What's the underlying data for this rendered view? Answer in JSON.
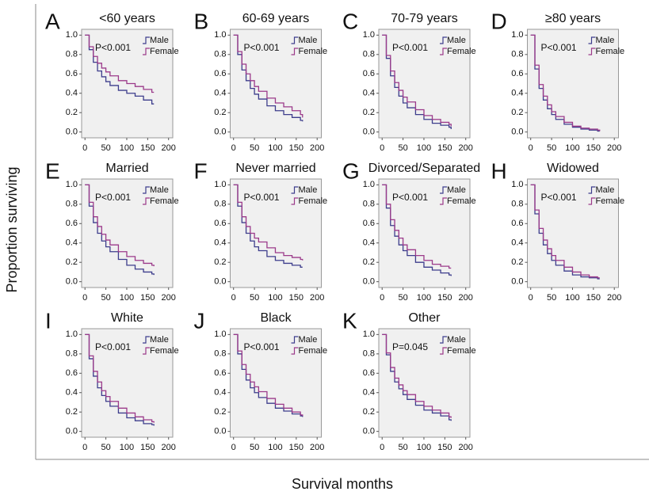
{
  "y_label": "Proportion surviving",
  "x_label": "Survival months",
  "chart_data": [
    {
      "type": "line",
      "step": true,
      "panel": "A",
      "title": "<60 years",
      "annotation": "P<0.001",
      "x": [
        0,
        10,
        20,
        30,
        40,
        50,
        60,
        80,
        100,
        120,
        140,
        160,
        165
      ],
      "series": [
        {
          "name": "Male",
          "color": "#3d3d8c",
          "values": [
            1,
            0.85,
            0.72,
            0.63,
            0.57,
            0.52,
            0.48,
            0.43,
            0.4,
            0.37,
            0.33,
            0.29,
            0.29
          ]
        },
        {
          "name": "Female",
          "color": "#9b3a8a",
          "values": [
            1,
            0.88,
            0.78,
            0.71,
            0.66,
            0.62,
            0.58,
            0.53,
            0.5,
            0.47,
            0.44,
            0.41,
            0.41
          ]
        }
      ],
      "xlim": [
        -8,
        210
      ],
      "ylim": [
        -0.06,
        1.06
      ],
      "xticks": [
        0,
        50,
        100,
        150,
        200
      ],
      "yticks": [
        {
          "value": 0,
          "label": "0.0"
        },
        0.2,
        0.4,
        0.6,
        0.8,
        {
          "value": 1,
          "label": "1.0"
        }
      ]
    },
    {
      "type": "line",
      "step": true,
      "panel": "B",
      "title": "60-69 years",
      "annotation": "P<0.001",
      "x": [
        0,
        10,
        20,
        30,
        40,
        50,
        60,
        80,
        100,
        120,
        140,
        160,
        165
      ],
      "series": [
        {
          "name": "Male",
          "color": "#3d3d8c",
          "values": [
            1,
            0.8,
            0.64,
            0.53,
            0.45,
            0.39,
            0.34,
            0.27,
            0.22,
            0.18,
            0.15,
            0.12,
            0.11
          ]
        },
        {
          "name": "Female",
          "color": "#9b3a8a",
          "values": [
            1,
            0.83,
            0.7,
            0.6,
            0.53,
            0.47,
            0.42,
            0.35,
            0.3,
            0.26,
            0.22,
            0.18,
            0.15
          ]
        }
      ],
      "xlim": [
        -8,
        210
      ],
      "ylim": [
        -0.06,
        1.06
      ],
      "xticks": [
        0,
        50,
        100,
        150,
        200
      ],
      "yticks": [
        {
          "value": 0,
          "label": "0.0"
        },
        0.2,
        0.4,
        0.6,
        0.8,
        {
          "value": 1,
          "label": "1.0"
        }
      ]
    },
    {
      "type": "line",
      "step": true,
      "panel": "C",
      "title": "70-79 years",
      "annotation": "P<0.001",
      "x": [
        0,
        10,
        20,
        30,
        40,
        50,
        60,
        80,
        100,
        120,
        140,
        160,
        165
      ],
      "series": [
        {
          "name": "Male",
          "color": "#3d3d8c",
          "values": [
            1,
            0.76,
            0.58,
            0.46,
            0.37,
            0.3,
            0.25,
            0.18,
            0.13,
            0.09,
            0.07,
            0.05,
            0.03
          ]
        },
        {
          "name": "Female",
          "color": "#9b3a8a",
          "values": [
            1,
            0.79,
            0.63,
            0.51,
            0.43,
            0.36,
            0.31,
            0.23,
            0.17,
            0.13,
            0.1,
            0.08,
            0.06
          ]
        }
      ],
      "xlim": [
        -8,
        210
      ],
      "ylim": [
        -0.06,
        1.06
      ],
      "xticks": [
        0,
        50,
        100,
        150,
        200
      ],
      "yticks": [
        {
          "value": 0,
          "label": "0.0"
        },
        0.2,
        0.4,
        0.6,
        0.8,
        {
          "value": 1,
          "label": "1.0"
        }
      ]
    },
    {
      "type": "line",
      "step": true,
      "panel": "D",
      "title": "≥80 years",
      "annotation": "P<0.001",
      "x": [
        0,
        10,
        20,
        30,
        40,
        50,
        60,
        80,
        100,
        120,
        140,
        160,
        165
      ],
      "series": [
        {
          "name": "Male",
          "color": "#3d3d8c",
          "values": [
            1,
            0.65,
            0.45,
            0.33,
            0.24,
            0.18,
            0.13,
            0.08,
            0.05,
            0.03,
            0.02,
            0.01,
            0.01
          ]
        },
        {
          "name": "Female",
          "color": "#9b3a8a",
          "values": [
            1,
            0.69,
            0.49,
            0.37,
            0.28,
            0.21,
            0.16,
            0.1,
            0.06,
            0.04,
            0.03,
            0.02,
            0.01
          ]
        }
      ],
      "xlim": [
        -8,
        210
      ],
      "ylim": [
        -0.06,
        1.06
      ],
      "xticks": [
        0,
        50,
        100,
        150,
        200
      ],
      "yticks": [
        {
          "value": 0,
          "label": "0.0"
        },
        0.2,
        0.4,
        0.6,
        0.8,
        {
          "value": 1,
          "label": "1.0"
        }
      ]
    },
    {
      "type": "line",
      "step": true,
      "panel": "E",
      "title": "Married",
      "annotation": "P<0.001",
      "x": [
        0,
        10,
        20,
        30,
        40,
        50,
        60,
        80,
        100,
        120,
        140,
        160,
        165
      ],
      "series": [
        {
          "name": "Male",
          "color": "#3d3d8c",
          "values": [
            1,
            0.78,
            0.61,
            0.5,
            0.42,
            0.36,
            0.31,
            0.23,
            0.17,
            0.13,
            0.1,
            0.08,
            0.07
          ]
        },
        {
          "name": "Female",
          "color": "#9b3a8a",
          "values": [
            1,
            0.82,
            0.67,
            0.57,
            0.49,
            0.43,
            0.38,
            0.31,
            0.26,
            0.22,
            0.19,
            0.17,
            0.16
          ]
        }
      ],
      "xlim": [
        -8,
        210
      ],
      "ylim": [
        -0.06,
        1.06
      ],
      "xticks": [
        0,
        50,
        100,
        150,
        200
      ],
      "yticks": [
        {
          "value": 0,
          "label": "0.0"
        },
        0.2,
        0.4,
        0.6,
        0.8,
        {
          "value": 1,
          "label": "1.0"
        }
      ]
    },
    {
      "type": "line",
      "step": true,
      "panel": "F",
      "title": "Never married",
      "annotation": "P<0.001",
      "x": [
        0,
        10,
        20,
        30,
        40,
        50,
        60,
        80,
        100,
        120,
        140,
        160,
        165
      ],
      "series": [
        {
          "name": "Male",
          "color": "#3d3d8c",
          "values": [
            1,
            0.78,
            0.61,
            0.5,
            0.42,
            0.36,
            0.32,
            0.26,
            0.22,
            0.19,
            0.17,
            0.15,
            0.15
          ]
        },
        {
          "name": "Female",
          "color": "#9b3a8a",
          "values": [
            1,
            0.82,
            0.67,
            0.57,
            0.5,
            0.45,
            0.41,
            0.35,
            0.3,
            0.27,
            0.25,
            0.23,
            0.22
          ]
        }
      ],
      "xlim": [
        -8,
        210
      ],
      "ylim": [
        -0.06,
        1.06
      ],
      "xticks": [
        0,
        50,
        100,
        150,
        200
      ],
      "yticks": [
        {
          "value": 0,
          "label": "0.0"
        },
        0.2,
        0.4,
        0.6,
        0.8,
        {
          "value": 1,
          "label": "1.0"
        }
      ]
    },
    {
      "type": "line",
      "step": true,
      "panel": "G",
      "title": "Divorced/Separated",
      "annotation": "P<0.001",
      "x": [
        0,
        10,
        20,
        30,
        40,
        50,
        60,
        80,
        100,
        120,
        140,
        160,
        165
      ],
      "series": [
        {
          "name": "Male",
          "color": "#3d3d8c",
          "values": [
            1,
            0.76,
            0.58,
            0.47,
            0.38,
            0.32,
            0.27,
            0.2,
            0.15,
            0.12,
            0.09,
            0.07,
            0.06
          ]
        },
        {
          "name": "Female",
          "color": "#9b3a8a",
          "values": [
            1,
            0.8,
            0.64,
            0.53,
            0.45,
            0.38,
            0.33,
            0.27,
            0.22,
            0.18,
            0.16,
            0.14,
            0.14
          ]
        }
      ],
      "xlim": [
        -8,
        210
      ],
      "ylim": [
        -0.06,
        1.06
      ],
      "xticks": [
        0,
        50,
        100,
        150,
        200
      ],
      "yticks": [
        {
          "value": 0,
          "label": "0.0"
        },
        0.2,
        0.4,
        0.6,
        0.8,
        {
          "value": 1,
          "label": "1.0"
        }
      ]
    },
    {
      "type": "line",
      "step": true,
      "panel": "H",
      "title": "Widowed",
      "annotation": "P<0.001",
      "x": [
        0,
        10,
        20,
        30,
        40,
        50,
        60,
        80,
        100,
        120,
        140,
        160,
        165
      ],
      "series": [
        {
          "name": "Male",
          "color": "#3d3d8c",
          "values": [
            1,
            0.7,
            0.5,
            0.38,
            0.29,
            0.22,
            0.17,
            0.11,
            0.07,
            0.05,
            0.04,
            0.03,
            0.03
          ]
        },
        {
          "name": "Female",
          "color": "#9b3a8a",
          "values": [
            1,
            0.74,
            0.55,
            0.43,
            0.34,
            0.27,
            0.22,
            0.15,
            0.1,
            0.07,
            0.05,
            0.04,
            0.04
          ]
        }
      ],
      "xlim": [
        -8,
        210
      ],
      "ylim": [
        -0.06,
        1.06
      ],
      "xticks": [
        0,
        50,
        100,
        150,
        200
      ],
      "yticks": [
        {
          "value": 0,
          "label": "0.0"
        },
        0.2,
        0.4,
        0.6,
        0.8,
        {
          "value": 1,
          "label": "1.0"
        }
      ]
    },
    {
      "type": "line",
      "step": true,
      "panel": "I",
      "title": "White",
      "annotation": "P<0.001",
      "x": [
        0,
        10,
        20,
        30,
        40,
        50,
        60,
        80,
        100,
        120,
        140,
        160,
        165
      ],
      "series": [
        {
          "name": "Male",
          "color": "#3d3d8c",
          "values": [
            1,
            0.75,
            0.57,
            0.45,
            0.37,
            0.31,
            0.26,
            0.19,
            0.14,
            0.11,
            0.08,
            0.07,
            0.06
          ]
        },
        {
          "name": "Female",
          "color": "#9b3a8a",
          "values": [
            1,
            0.78,
            0.62,
            0.51,
            0.42,
            0.36,
            0.31,
            0.24,
            0.19,
            0.15,
            0.12,
            0.1,
            0.09
          ]
        }
      ],
      "xlim": [
        -8,
        210
      ],
      "ylim": [
        -0.06,
        1.06
      ],
      "xticks": [
        0,
        50,
        100,
        150,
        200
      ],
      "yticks": [
        {
          "value": 0,
          "label": "0.0"
        },
        0.2,
        0.4,
        0.6,
        0.8,
        {
          "value": 1,
          "label": "1.0"
        }
      ]
    },
    {
      "type": "line",
      "step": true,
      "panel": "J",
      "title": "Black",
      "annotation": "P<0.001",
      "x": [
        0,
        10,
        20,
        30,
        40,
        50,
        60,
        80,
        100,
        120,
        140,
        160,
        165
      ],
      "series": [
        {
          "name": "Male",
          "color": "#3d3d8c",
          "values": [
            1,
            0.8,
            0.64,
            0.53,
            0.45,
            0.4,
            0.35,
            0.29,
            0.24,
            0.21,
            0.18,
            0.16,
            0.15
          ]
        },
        {
          "name": "Female",
          "color": "#9b3a8a",
          "values": [
            1,
            0.83,
            0.69,
            0.59,
            0.51,
            0.46,
            0.41,
            0.34,
            0.28,
            0.24,
            0.2,
            0.17,
            0.16
          ]
        }
      ],
      "xlim": [
        -8,
        210
      ],
      "ylim": [
        -0.06,
        1.06
      ],
      "xticks": [
        0,
        50,
        100,
        150,
        200
      ],
      "yticks": [
        {
          "value": 0,
          "label": "0.0"
        },
        0.2,
        0.4,
        0.6,
        0.8,
        {
          "value": 1,
          "label": "1.0"
        }
      ]
    },
    {
      "type": "line",
      "step": true,
      "panel": "K",
      "title": "Other",
      "annotation": "P=0.045",
      "x": [
        0,
        10,
        20,
        30,
        40,
        50,
        60,
        80,
        100,
        120,
        140,
        160,
        165
      ],
      "series": [
        {
          "name": "Male",
          "color": "#3d3d8c",
          "values": [
            1,
            0.79,
            0.62,
            0.51,
            0.44,
            0.38,
            0.33,
            0.27,
            0.22,
            0.19,
            0.16,
            0.12,
            0.11
          ]
        },
        {
          "name": "Female",
          "color": "#9b3a8a",
          "values": [
            1,
            0.81,
            0.66,
            0.55,
            0.48,
            0.42,
            0.38,
            0.31,
            0.26,
            0.22,
            0.19,
            0.15,
            0.14
          ]
        }
      ],
      "xlim": [
        -8,
        210
      ],
      "ylim": [
        -0.06,
        1.06
      ],
      "xticks": [
        0,
        50,
        100,
        150,
        200
      ],
      "yticks": [
        {
          "value": 0,
          "label": "0.0"
        },
        0.2,
        0.4,
        0.6,
        0.8,
        {
          "value": 1,
          "label": "1.0"
        }
      ]
    }
  ]
}
